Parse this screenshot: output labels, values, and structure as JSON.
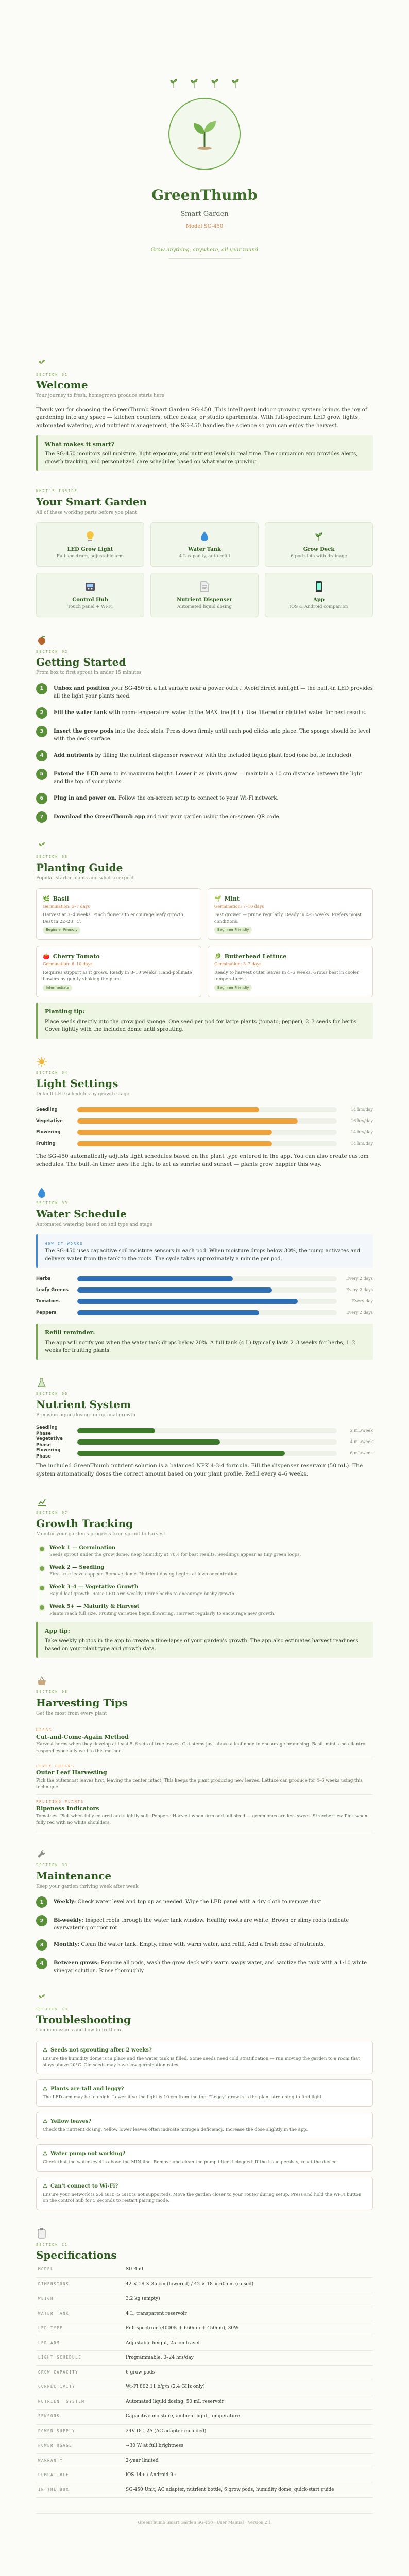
{
  "cover": {
    "brand": "GreenThumb",
    "subtitle": "Smart Garden",
    "model": "Model SG-450",
    "tagline": "Grow anything, anywhere, all year round"
  },
  "welcome": {
    "label": "SECTION 01",
    "title": "Welcome",
    "sub": "Your journey to fresh, homegrown produce starts here",
    "p1": "Thank you for choosing the GreenThumb Smart Garden SG-450. This intelligent indoor growing system brings the joy of gardening into any space — kitchen counters, office desks, or studio apartments. With full-spectrum LED grow lights, automated watering, and nutrient management, the SG-450 handles the science so you can enjoy the harvest.",
    "callout_title": "What makes it smart?",
    "callout_text": "The SG-450 monitors soil moisture, light exposure, and nutrient levels in real time. The companion app provides alerts, growth tracking, and personalized care schedules based on what you're growing."
  },
  "garden": {
    "label": "WHAT'S INSIDE",
    "title": "Your Smart Garden",
    "sub": "All of these working parts before you plant",
    "items": [
      {
        "t": "LED Grow Light",
        "s": "Full-spectrum, adjustable arm"
      },
      {
        "t": "Water Tank",
        "s": "4 L capacity, auto-refill"
      },
      {
        "t": "Grow Deck",
        "s": "6 pod slots with drainage"
      },
      {
        "t": "Control Hub",
        "s": "Touch panel + Wi-Fi"
      },
      {
        "t": "Nutrient Dispenser",
        "s": "Automated liquid dosing"
      },
      {
        "t": "App",
        "s": "iOS & Android companion"
      }
    ]
  },
  "start": {
    "label": "SECTION 02",
    "title": "Getting Started",
    "sub": "From box to first sprout in under 15 minutes",
    "steps": [
      {
        "b": "Unbox and position",
        "t": " your SG-450 on a flat surface near a power outlet. Avoid direct sunlight — the built-in LED provides all the light your plants need."
      },
      {
        "b": "Fill the water tank",
        "t": " with room-temperature water to the MAX line (4 L). Use filtered or distilled water for best results."
      },
      {
        "b": "Insert the grow pods",
        "t": " into the deck slots. Press down firmly until each pod clicks into place. The sponge should be level with the deck surface."
      },
      {
        "b": "Add nutrients",
        "t": " by filling the nutrient dispenser reservoir with the included liquid plant food (one bottle included)."
      },
      {
        "b": "Extend the LED arm",
        "t": " to its maximum height. Lower it as plants grow — maintain a 10 cm distance between the light and the top of your plants."
      },
      {
        "b": "Plug in and power on.",
        "t": " Follow the on-screen setup to connect to your Wi-Fi network."
      },
      {
        "b": "Download the GreenThumb app",
        "t": " and pair your garden using the on-screen QR code."
      }
    ]
  },
  "planting": {
    "label": "SECTION 03",
    "title": "Planting Guide",
    "sub": "Popular starter plants and what to expect",
    "plants": [
      {
        "n": "Basil",
        "m": "Germination: 5–7 days",
        "d": "Harvest at 3–4 weeks. Pinch flowers to encourage leafy growth. Best in 22–28 °C.",
        "tag": "Beginner Friendly"
      },
      {
        "n": "Mint",
        "m": "Germination: 7–10 days",
        "d": "Fast grower — prune regularly. Ready in 4–5 weeks. Prefers moist conditions.",
        "tag": "Beginner Friendly"
      },
      {
        "n": "Cherry Tomato",
        "m": "Germination: 6–10 days",
        "d": "Requires support as it grows. Ready in 8–10 weeks. Hand-pollinate flowers by gently shaking the plant.",
        "tag": "Intermediate"
      },
      {
        "n": "Butterhead Lettuce",
        "m": "Germination: 3–7 days",
        "d": "Ready to harvest outer leaves in 4–5 weeks. Grows best in cooler temperatures.",
        "tag": "Beginner Friendly"
      }
    ],
    "callout_title": "Planting tip:",
    "callout_text": "Place seeds directly into the grow pod sponge. One seed per pod for large plants (tomato, pepper), 2–3 seeds for herbs. Cover lightly with the included dome until sprouting."
  },
  "light": {
    "label": "SECTION 04",
    "title": "Light Settings",
    "sub": "Default LED schedules by growth stage",
    "rows": [
      {
        "l": "Seedling",
        "pct": 70,
        "v": "14 hrs/day"
      },
      {
        "l": "Vegetative",
        "pct": 85,
        "v": "16 hrs/day"
      },
      {
        "l": "Flowering",
        "pct": 75,
        "v": "14 hrs/day"
      },
      {
        "l": "Fruiting",
        "pct": 75,
        "v": "14 hrs/day"
      }
    ],
    "p": "The SG-450 automatically adjusts light schedules based on the plant type entered in the app. You can also create custom schedules. The built-in timer uses the light to act as sunrise and sunset — plants grow happier this way."
  },
  "water": {
    "label": "SECTION 05",
    "title": "Water Schedule",
    "sub": "Automated watering based on soil type and stage",
    "how_label": "HOW IT WORKS",
    "p": "The SG-450 uses capacitive soil moisture sensors in each pod. When moisture drops below 30%, the pump activates and delivers water from the tank to the roots. The cycle takes approximately a minute per pod.",
    "rows": [
      {
        "l": "Herbs",
        "pct": 60,
        "v": "Every 2 days"
      },
      {
        "l": "Leafy Greens",
        "pct": 75,
        "v": "Every 2 days"
      },
      {
        "l": "Tomatoes",
        "pct": 85,
        "v": "Every day"
      },
      {
        "l": "Peppers",
        "pct": 70,
        "v": "Every 2 days"
      }
    ],
    "callout_title": "Refill reminder:",
    "callout_text": "The app will notify you when the water tank drops below 20%. A full tank (4 L) typically lasts 2–3 weeks for herbs, 1–2 weeks for fruiting plants."
  },
  "nutrient": {
    "label": "SECTION 06",
    "title": "Nutrient System",
    "sub": "Precision liquid dosing for optimal growth",
    "rows": [
      {
        "l": "Seedling Phase",
        "pct": 30,
        "v": "2 mL/week"
      },
      {
        "l": "Vegetative Phase",
        "pct": 55,
        "v": "4 mL/week"
      },
      {
        "l": "Flowering Phase",
        "pct": 80,
        "v": "6 mL/week"
      }
    ],
    "p": "The included GreenThumb nutrient solution is a balanced NPK 4-3-4 formula. Fill the dispenser reservoir (50 mL). The system automatically doses the correct amount based on your plant profile. Refill every 4–6 weeks."
  },
  "growth": {
    "label": "SECTION 07",
    "title": "Growth Tracking",
    "sub": "Monitor your garden's progress from sprout to harvest",
    "items": [
      {
        "t": "Week 1 — Germination",
        "d": "Seeds sprout under the grow dome. Keep humidity at 70% for best results. Seedlings appear as tiny green loops."
      },
      {
        "t": "Week 2 — Seedling",
        "d": "First true leaves appear. Remove dome. Nutrient dosing begins at low concentration."
      },
      {
        "t": "Week 3–4 — Vegetative Growth",
        "d": "Rapid leaf growth. Raise LED arm weekly. Prune herbs to encourage bushy growth."
      },
      {
        "t": "Week 5+ — Maturity & Harvest",
        "d": "Plants reach full size. Fruiting varieties begin flowering. Harvest regularly to encourage new growth."
      }
    ],
    "callout_title": "App tip:",
    "callout_text": "Take weekly photos in the app to create a time-lapse of your garden's growth. The app also estimates harvest readiness based on your plant type and growth data."
  },
  "harvest": {
    "label": "SECTION 08",
    "title": "Harvesting Tips",
    "sub": "Get the most from every plant",
    "tips": [
      {
        "l": "HERBS",
        "t": "Cut-and-Come-Again Method",
        "d": "Harvest herbs when they develop at least 5–6 sets of true leaves. Cut stems just above a leaf node to encourage branching. Basil, mint, and cilantro respond especially well to this method."
      },
      {
        "l": "LEAFY GREENS",
        "t": "Outer Leaf Harvesting",
        "d": "Pick the outermost leaves first, leaving the center intact. This keeps the plant producing new leaves. Lettuce can produce for 4–6 weeks using this technique."
      },
      {
        "l": "FRUITING PLANTS",
        "t": "Ripeness Indicators",
        "d": "Tomatoes: Pick when fully colored and slightly soft. Peppers: Harvest when firm and full-sized — green ones are less sweet. Strawberries: Pick when fully red with no white shoulders."
      }
    ]
  },
  "maint": {
    "label": "SECTION 09",
    "title": "Maintenance",
    "sub": "Keep your garden thriving week after week",
    "steps": [
      {
        "b": "Weekly:",
        "t": " Check water level and top up as needed. Wipe the LED panel with a dry cloth to remove dust."
      },
      {
        "b": "Bi-weekly:",
        "t": " Inspect roots through the water tank window. Healthy roots are white. Brown or slimy roots indicate overwatering or root rot."
      },
      {
        "b": "Monthly:",
        "t": " Clean the water tank. Empty, rinse with warm water, and refill. Add a fresh dose of nutrients."
      },
      {
        "b": "Between grows:",
        "t": " Remove all pods, wash the grow deck with warm soapy water, and sanitize the tank with a 1:10 white vinegar solution. Rinse thoroughly."
      }
    ]
  },
  "trouble": {
    "label": "SECTION 10",
    "title": "Troubleshooting",
    "sub": "Common issues and how to fix them",
    "faqs": [
      {
        "q": "Seeds not sprouting after 2 weeks?",
        "a": "Ensure the humidity dome is in place and the water tank is filled. Some seeds need cold stratification — run moving the garden to a room that stays above 20°C. Old seeds may have low germination rates."
      },
      {
        "q": "Plants are tall and leggy?",
        "a": "The LED arm may be too high. Lower it so the light is 10 cm from the top. \"Leggy\" growth is the plant stretching to find light."
      },
      {
        "q": "Yellow leaves?",
        "a": "Check the nutrient dosing. Yellow lower leaves often indicate nitrogen deficiency. Increase the dose slightly in the app."
      },
      {
        "q": "Water pump not working?",
        "a": "Check that the water level is above the MIN line. Remove and clean the pump filter if clogged. If the issue persists, reset the device."
      },
      {
        "q": "Can't connect to Wi-Fi?",
        "a": "Ensure your network is 2.4 GHz (5 GHz is not supported). Move the garden closer to your router during setup. Press and hold the Wi-Fi button on the control hub for 5 seconds to restart pairing mode."
      }
    ]
  },
  "specs": {
    "label": "SECTION 11",
    "title": "Specifications",
    "rows": [
      {
        "k": "MODEL",
        "v": "SG-450"
      },
      {
        "k": "DIMENSIONS",
        "v": "42 × 18 × 35 cm (lowered) / 42 × 18 × 60 cm (raised)"
      },
      {
        "k": "WEIGHT",
        "v": "3.2 kg (empty)"
      },
      {
        "k": "WATER TANK",
        "v": "4 L, transparent reservoir"
      },
      {
        "k": "LED TYPE",
        "v": "Full-spectrum (4000K + 660nm + 450nm), 30W"
      },
      {
        "k": "LED ARM",
        "v": "Adjustable height, 25 cm travel"
      },
      {
        "k": "LIGHT SCHEDULE",
        "v": "Programmable, 0–24 hrs/day"
      },
      {
        "k": "GROW CAPACITY",
        "v": "6 grow pods"
      },
      {
        "k": "CONNECTIVITY",
        "v": "Wi-Fi 802.11 b/g/n (2.4 GHz only)"
      },
      {
        "k": "NUTRIENT SYSTEM",
        "v": "Automated liquid dosing, 50 mL reservoir"
      },
      {
        "k": "SENSORS",
        "v": "Capacitive moisture, ambient light, temperature"
      },
      {
        "k": "POWER SUPPLY",
        "v": "24V DC, 2A (AC adapter included)"
      },
      {
        "k": "POWER USAGE",
        "v": "~30 W at full brightness"
      },
      {
        "k": "WARRANTY",
        "v": "2-year limited"
      },
      {
        "k": "COMPATIBLE",
        "v": "iOS 14+ / Android 9+"
      },
      {
        "k": "IN THE BOX",
        "v": "SG-450 Unit, AC adapter, nutrient bottle, 6 grow pods, humidity dome, quick-start guide"
      }
    ]
  },
  "footer": "GreenThumb Smart Garden SG-450 · User Manual · Version 2.1"
}
